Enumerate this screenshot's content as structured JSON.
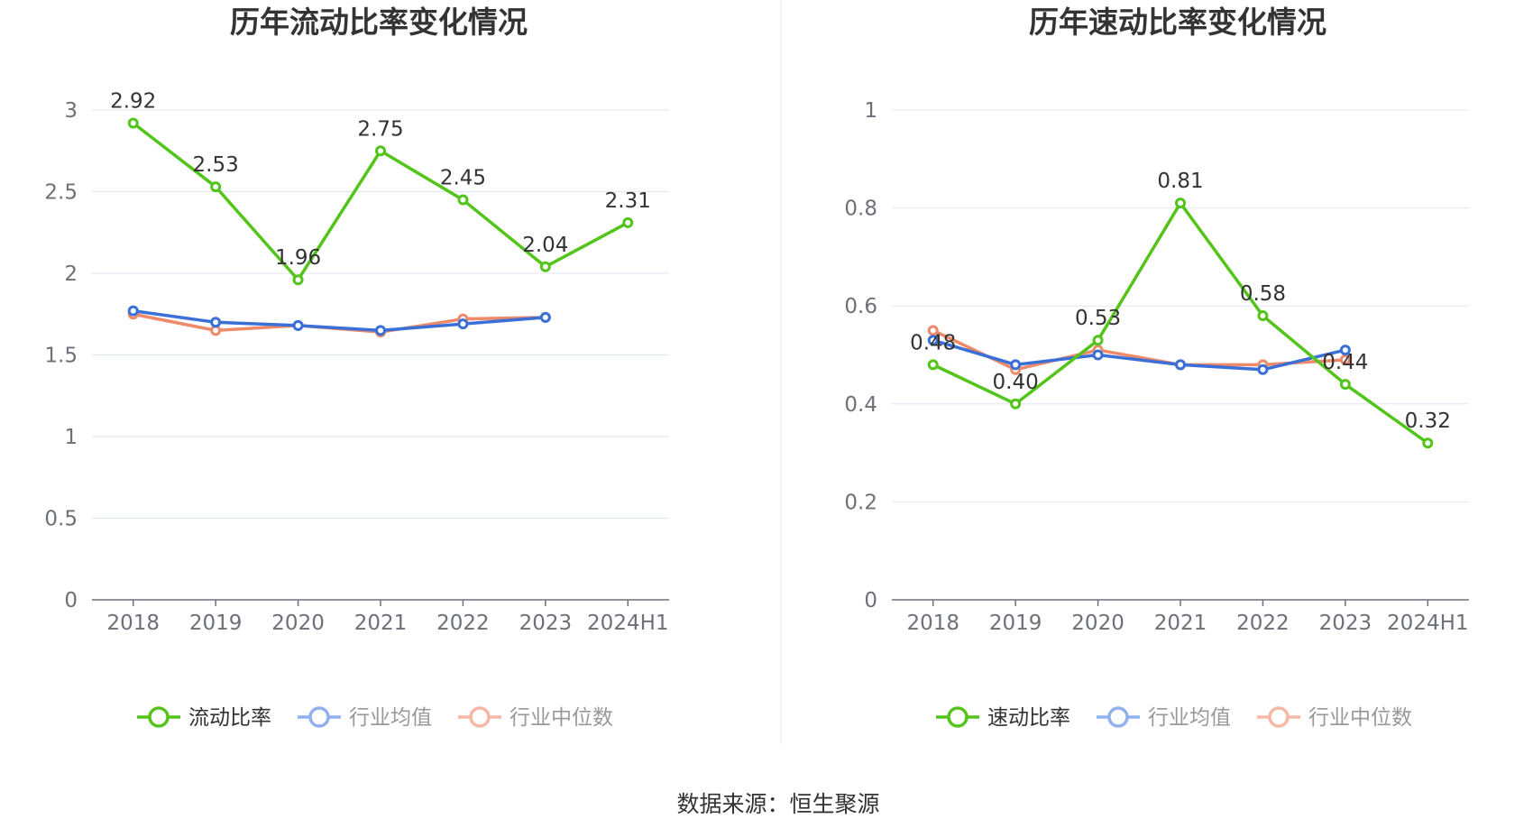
{
  "colors": {
    "primary": "#52c41a",
    "industry_avg": "#3b6fd8",
    "industry_median": "#ee8a6a",
    "legend_avg_inactive": "#90b0ee",
    "legend_median_inactive": "#f6b8a4",
    "grid": "#e0e6f1",
    "axis": "#6e7079"
  },
  "footer": {
    "source": "数据来源：恒生聚源"
  },
  "chart_data": [
    {
      "type": "line",
      "title": "历年流动比率变化情况",
      "categories": [
        "2018",
        "2019",
        "2020",
        "2021",
        "2022",
        "2023",
        "2024H1"
      ],
      "ylim": [
        0,
        3
      ],
      "yticks": [
        "0",
        "0.5",
        "1",
        "1.5",
        "2",
        "2.5",
        "3"
      ],
      "grid": true,
      "legend_position": "bottom",
      "series": [
        {
          "name": "流动比率",
          "values": [
            2.92,
            2.53,
            1.96,
            2.75,
            2.45,
            2.04,
            2.31
          ],
          "labels": [
            "2.92",
            "2.53",
            "1.96",
            "2.75",
            "2.45",
            "2.04",
            "2.31"
          ]
        },
        {
          "name": "行业均值",
          "values": [
            1.77,
            1.7,
            1.68,
            1.65,
            1.69,
            1.73,
            null
          ]
        },
        {
          "name": "行业中位数",
          "values": [
            1.75,
            1.65,
            1.68,
            1.64,
            1.72,
            1.73,
            null
          ]
        }
      ]
    },
    {
      "type": "line",
      "title": "历年速动比率变化情况",
      "categories": [
        "2018",
        "2019",
        "2020",
        "2021",
        "2022",
        "2023",
        "2024H1"
      ],
      "ylim": [
        0,
        1
      ],
      "yticks": [
        "0",
        "0.2",
        "0.4",
        "0.6",
        "0.8",
        "1"
      ],
      "grid": true,
      "legend_position": "bottom",
      "series": [
        {
          "name": "速动比率",
          "values": [
            0.48,
            0.4,
            0.53,
            0.81,
            0.58,
            0.44,
            0.32
          ],
          "labels": [
            "0.48",
            "0.40",
            "0.53",
            "0.81",
            "0.58",
            "0.44",
            "0.32"
          ]
        },
        {
          "name": "行业均值",
          "values": [
            0.53,
            0.48,
            0.5,
            0.48,
            0.47,
            0.51,
            null
          ]
        },
        {
          "name": "行业中位数",
          "values": [
            0.55,
            0.47,
            0.51,
            0.48,
            0.48,
            0.49,
            null
          ]
        }
      ]
    }
  ]
}
